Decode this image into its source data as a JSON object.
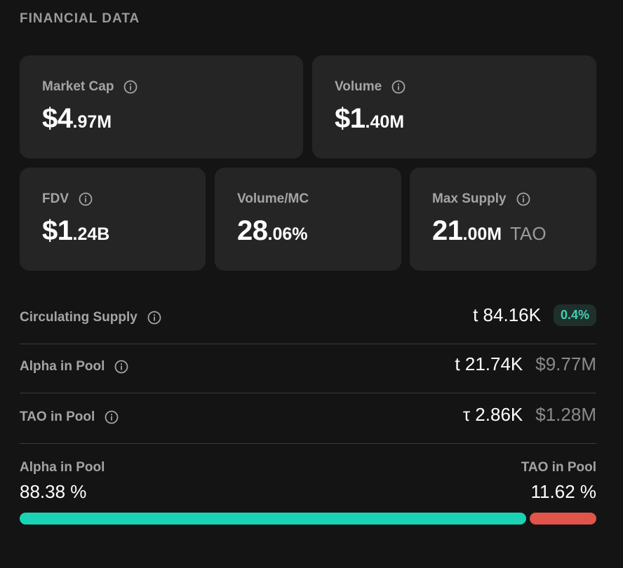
{
  "section_title": "FINANCIAL DATA",
  "cards": {
    "market_cap": {
      "label": "Market Cap",
      "int": "$4",
      "dec": ".97M"
    },
    "volume": {
      "label": "Volume",
      "int": "$1",
      "dec": ".40M"
    },
    "fdv": {
      "label": "FDV",
      "int": "$1",
      "dec": ".24B"
    },
    "volume_mc": {
      "label": "Volume/MC",
      "int": "28",
      "dec": ".06%"
    },
    "max_supply": {
      "label": "Max Supply",
      "int": "21",
      "dec": ".00M",
      "unit": "TAO"
    }
  },
  "rows": {
    "circulating_supply": {
      "label": "Circulating Supply",
      "amount": "t 84.16K",
      "badge": "0.4%"
    },
    "alpha_in_pool": {
      "label": "Alpha in Pool",
      "amount": "t 21.74K",
      "usd": "$9.77M"
    },
    "tao_in_pool": {
      "label": "TAO in Pool",
      "amount": "τ 2.86K",
      "usd": "$1.28M"
    }
  },
  "pool_ratio": {
    "alpha_label": "Alpha in Pool",
    "alpha_pct": "88.38 %",
    "tao_label": "TAO in Pool",
    "tao_pct": "11.62 %",
    "alpha_fraction": 0.8838,
    "tao_fraction": 0.1162
  },
  "icons": {
    "info": "info-circle-icon"
  },
  "colors": {
    "alpha_bar": "#19d3b4",
    "tao_bar": "#e0544a",
    "badge_text": "#3fd0b4"
  }
}
